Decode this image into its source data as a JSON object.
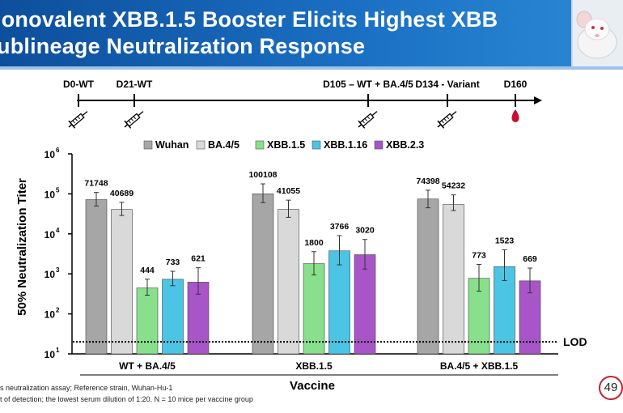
{
  "header": {
    "title_line1": "lonovalent XBB.1.5 Booster Elicits Highest XBB",
    "title_line2": "ublineage Neutralization Response"
  },
  "timeline": {
    "labels": [
      "D0-WT",
      "D21-WT",
      "D105 – WT + BA.4/5",
      "D134 - Variant",
      "D160"
    ],
    "events": [
      "syringe-icon",
      "syringe-icon",
      "syringe-icon",
      "syringe-icon",
      "blood-drop-icon"
    ]
  },
  "chart_data": {
    "type": "bar",
    "ylabel": "50% Neutralization Titer",
    "xlabel": "Vaccine",
    "yscale": "log",
    "ylim": [
      10,
      1000000
    ],
    "yticks": [
      {
        "base": "10",
        "exp": "1"
      },
      {
        "base": "10",
        "exp": "2"
      },
      {
        "base": "10",
        "exp": "3"
      },
      {
        "base": "10",
        "exp": "4"
      },
      {
        "base": "10",
        "exp": "5"
      },
      {
        "base": "10",
        "exp": "6"
      }
    ],
    "categories": [
      "WT + BA.4/5",
      "XBB.1.5",
      "BA.4/5 + XBB.1.5"
    ],
    "series": [
      {
        "name": "Wuhan",
        "color": "#a6a6a6",
        "values": [
          71748,
          100108,
          74398
        ],
        "labels": [
          "71748",
          "100108",
          "74398"
        ]
      },
      {
        "name": "BA.4/5",
        "color": "#d9d9d9",
        "values": [
          40689,
          41055,
          54232
        ],
        "labels": [
          "40689",
          "41055",
          "54232"
        ]
      },
      {
        "name": "XBB.1.5",
        "color": "#88e08c",
        "values": [
          444,
          1800,
          773
        ],
        "labels": [
          "444",
          "1800",
          "773"
        ]
      },
      {
        "name": "XBB.1.16",
        "color": "#4cc4e4",
        "values": [
          733,
          3766,
          1523
        ],
        "labels": [
          "733",
          "3766",
          "1523"
        ]
      },
      {
        "name": "XBB.2.3",
        "color": "#a855c8",
        "values": [
          621,
          3020,
          669
        ],
        "labels": [
          "621",
          "3020",
          "669"
        ]
      }
    ],
    "lod": {
      "label": "LOD",
      "value": 20
    },
    "legend_position": "top",
    "grid": false
  },
  "footnotes": [
    "s neutralization assay; Reference strain, Wuhan-Hu-1",
    "t of detection; the lowest serum dilution of 1:20. N = 10 mice per vaccine group"
  ],
  "page_number": "49"
}
